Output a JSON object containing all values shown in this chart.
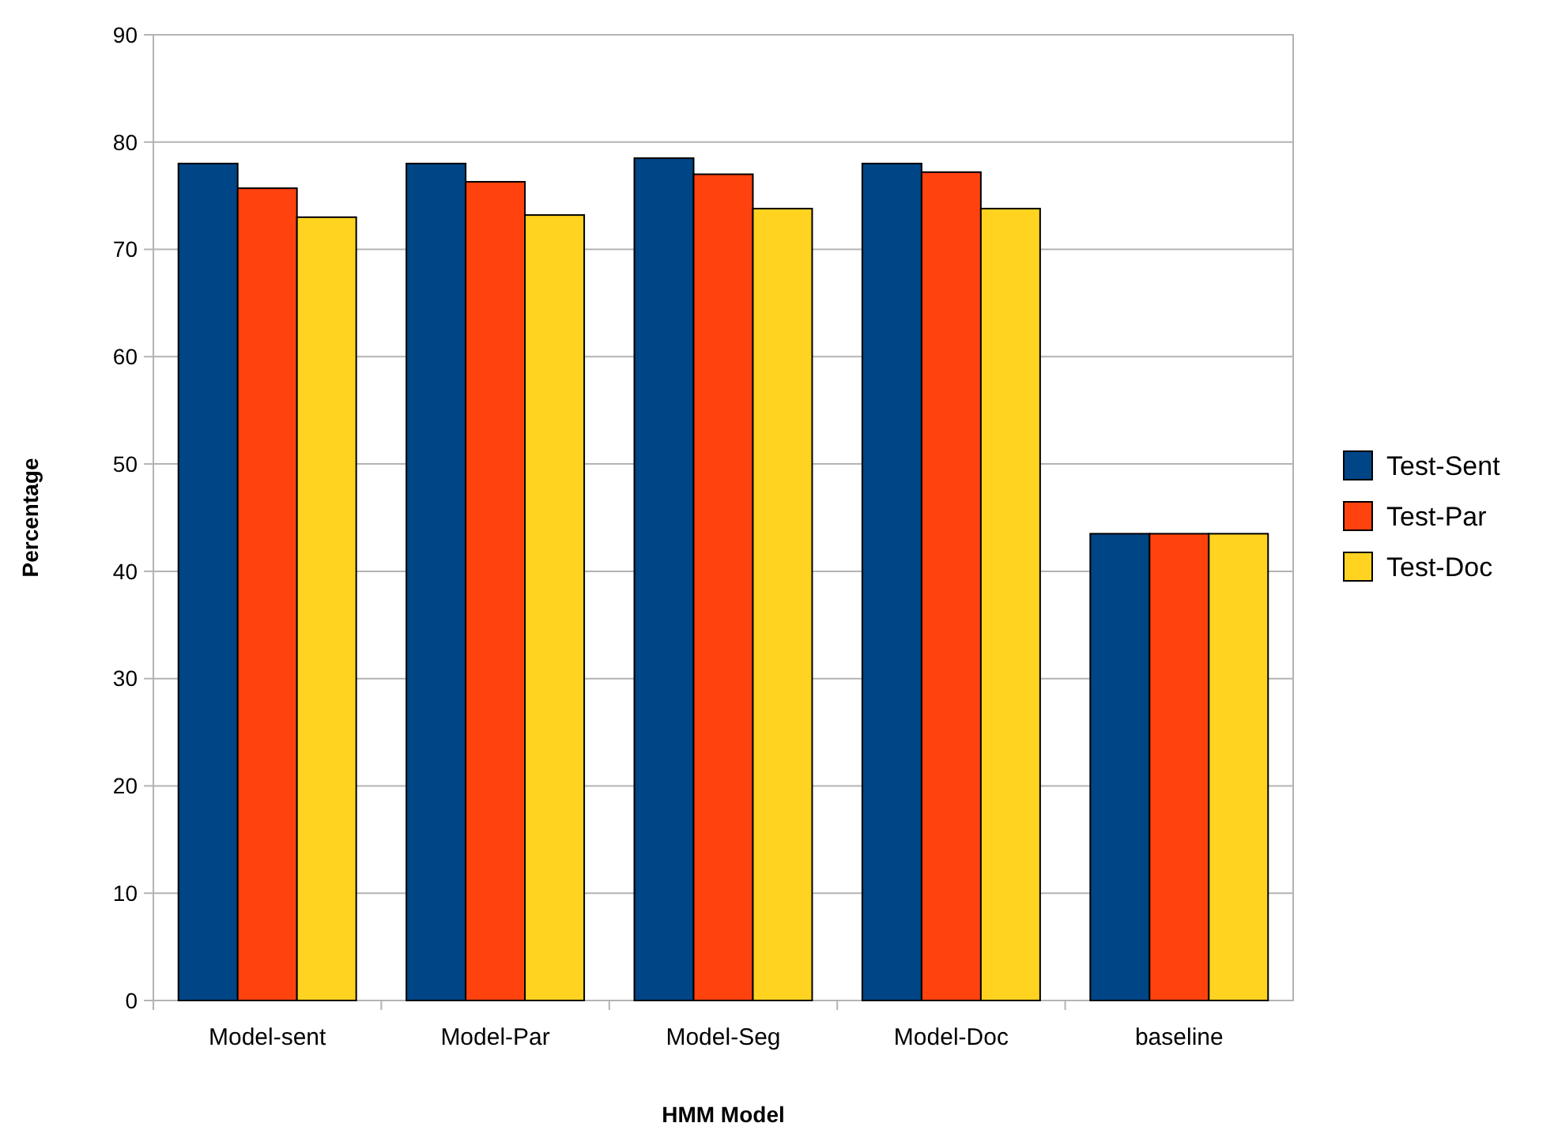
{
  "chart_data": {
    "type": "bar",
    "xlabel": "HMM Model",
    "ylabel": "Percentage",
    "categories": [
      "Model-sent",
      "Model-Par",
      "Model-Seg",
      "Model-Doc",
      "baseline"
    ],
    "series": [
      {
        "name": "Test-Sent",
        "color": "#004586",
        "values": [
          78,
          78,
          78.5,
          78,
          43.5
        ]
      },
      {
        "name": "Test-Par",
        "color": "#ff420e",
        "values": [
          75.7,
          76.3,
          77,
          77.2,
          43.5
        ]
      },
      {
        "name": "Test-Doc",
        "color": "#ffd320",
        "values": [
          73,
          73.2,
          73.8,
          73.8,
          43.5
        ]
      }
    ],
    "ylim": [
      0,
      90
    ],
    "yticks": [
      0,
      10,
      20,
      30,
      40,
      50,
      60,
      70,
      80,
      90
    ],
    "grid": "y",
    "legend": "right"
  }
}
